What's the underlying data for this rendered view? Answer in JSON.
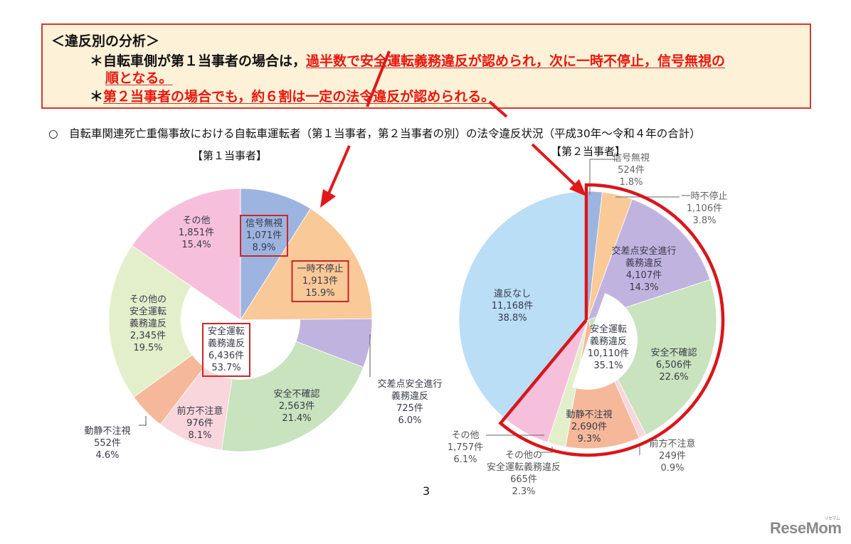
{
  "callout": {
    "heading": "＜違反別の分析＞",
    "line1_prefix": "＊自転車側が第１当事者の場合は，",
    "line1_red": "過半数で安全運転義務違反が認められ，次に一時不停止，信号無視の",
    "line2_red": "順となる。",
    "line3_prefix": "＊",
    "line3_red": "第２当事者の場合でも，約６割は一定の法令違反が認められる。"
  },
  "subtitle": "○　自転車関連死亡重傷事故における自転車運転者（第１当事者，第２当事者の別）の法令違反状況（平成30年～令和４年の合計）",
  "page_number": "3",
  "logo": {
    "text": "ReseMom",
    "kana": "リセマム"
  },
  "chart_data": [
    {
      "type": "pie",
      "title": "【第１当事者】",
      "unit": "件",
      "center_group": {
        "label": "安全運転\n義務違反",
        "count": "6,436件",
        "percent": "53.7%",
        "value": 6436,
        "pct": 53.7
      },
      "slices": [
        {
          "label": "信号無視",
          "count": "1,071件",
          "percent": "8.9%",
          "value": 1071,
          "pct": 8.9,
          "color": "#9db4e0",
          "highlighted": true
        },
        {
          "label": "一時不停止",
          "count": "1,913件",
          "percent": "15.9%",
          "value": 1913,
          "pct": 15.9,
          "color": "#f9c998",
          "highlighted": true
        },
        {
          "label": "交差点安全進行\n義務違反",
          "count": "725件",
          "percent": "6.0%",
          "value": 725,
          "pct": 6.0,
          "color": "#c1b3e0",
          "group": "安全運転義務違反"
        },
        {
          "label": "安全不確認",
          "count": "2,563件",
          "percent": "21.4%",
          "value": 2563,
          "pct": 21.4,
          "color": "#c8e3bd",
          "group": "安全運転義務違反"
        },
        {
          "label": "前方不注意",
          "count": "976件",
          "percent": "8.1%",
          "value": 976,
          "pct": 8.1,
          "color": "#f8d6dc",
          "group": "安全運転義務違反"
        },
        {
          "label": "動静不注視",
          "count": "552件",
          "percent": "4.6%",
          "value": 552,
          "pct": 4.6,
          "color": "#f5b89a",
          "group": "安全運転義務違反"
        },
        {
          "label": "その他の\n安全運転\n義務違反",
          "count": "2,345件",
          "percent": "19.5%",
          "value": 2345,
          "pct": 19.5,
          "color": "#e3efcb",
          "group": "安全運転義務違反"
        },
        {
          "label": "その他",
          "count": "1,851件",
          "percent": "15.4%",
          "value": 1851,
          "pct": 15.4,
          "color": "#f6c0dc"
        }
      ]
    },
    {
      "type": "pie",
      "title": "【第２当事者】",
      "unit": "件",
      "center_group": {
        "label": "安全運転\n義務違反",
        "count": "10,110件",
        "percent": "35.1%",
        "value": 10110,
        "pct": 35.1
      },
      "slices": [
        {
          "label": "信号無視",
          "count": "524件",
          "percent": "1.8%",
          "value": 524,
          "pct": 1.8,
          "color": "#9db4e0"
        },
        {
          "label": "一時不停止",
          "count": "1,106件",
          "percent": "3.8%",
          "value": 1106,
          "pct": 3.8,
          "color": "#f9c998"
        },
        {
          "label": "交差点安全進行\n義務違反",
          "count": "4,107件",
          "percent": "14.3%",
          "value": 4107,
          "pct": 14.3,
          "color": "#c1b3e0",
          "group": "安全運転義務違反"
        },
        {
          "label": "安全不確認",
          "count": "6,506件",
          "percent": "22.6%",
          "value": 6506,
          "pct": 22.6,
          "color": "#c8e3bd",
          "group": "安全運転義務違反"
        },
        {
          "label": "前方不注意",
          "count": "249件",
          "percent": "0.9%",
          "value": 249,
          "pct": 0.9,
          "color": "#f8d6dc",
          "group": "安全運転義務違反"
        },
        {
          "label": "動静不注視",
          "count": "2,690件",
          "percent": "9.3%",
          "value": 2690,
          "pct": 9.3,
          "color": "#f5b89a",
          "group": "安全運転義務違反"
        },
        {
          "label": "その他の\n安全運転義務違反",
          "count": "665件",
          "percent": "2.3%",
          "value": 665,
          "pct": 2.3,
          "color": "#e3efcb",
          "group": "安全運転義務違反"
        },
        {
          "label": "その他",
          "count": "1,757件",
          "percent": "6.1%",
          "value": 1757,
          "pct": 6.1,
          "color": "#f6c0dc"
        },
        {
          "label": "違反なし",
          "count": "11,168件",
          "percent": "38.8%",
          "value": 11168,
          "pct": 38.8,
          "color": "#b9def5"
        }
      ]
    }
  ],
  "accent_color": "#e8170e"
}
